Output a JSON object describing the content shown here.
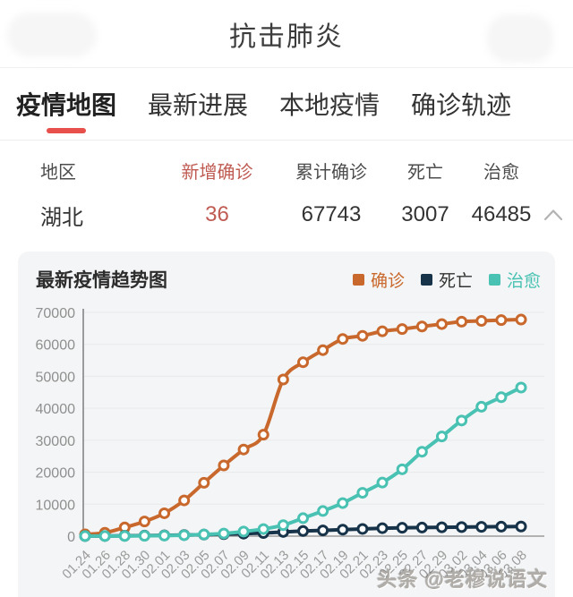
{
  "header": {
    "title": "抗击肺炎"
  },
  "tabs": [
    {
      "label": "疫情地图",
      "active": true
    },
    {
      "label": "最新进展",
      "active": false
    },
    {
      "label": "本地疫情",
      "active": false
    },
    {
      "label": "确诊轨迹",
      "active": false
    }
  ],
  "table": {
    "columns": [
      "地区",
      "新增确诊",
      "累计确诊",
      "死亡",
      "治愈"
    ],
    "rows": [
      {
        "region": "湖北",
        "new_confirmed": "36",
        "total_confirmed": "67743",
        "deaths": "3007",
        "cured": "46485"
      }
    ]
  },
  "icons": {
    "row_expander": "chevron-up-icon"
  },
  "chart": {
    "title": "最新疫情趋势图",
    "legend": [
      {
        "key": "confirmed",
        "name": "确诊",
        "swatch": "#c9682c",
        "text_color": "#c9682c"
      },
      {
        "key": "deaths",
        "name": "死亡",
        "swatch": "#16334a",
        "text_color": "#333333"
      },
      {
        "key": "cured",
        "name": "治愈",
        "swatch": "#49c2b3",
        "text_color": "#49c2b3"
      }
    ]
  },
  "chart_data": {
    "type": "line",
    "title": "最新疫情趋势图",
    "xlabel": "",
    "ylabel": "",
    "ylim": [
      0,
      70000
    ],
    "yticks": [
      0,
      10000,
      20000,
      30000,
      40000,
      50000,
      60000,
      70000
    ],
    "grid": true,
    "legend_position": "top-right",
    "x": [
      "01.24",
      "01.26",
      "01.28",
      "01.30",
      "02.01",
      "02.03",
      "02.05",
      "02.07",
      "02.09",
      "02.11",
      "02.13",
      "02.15",
      "02.17",
      "02.19",
      "02.21",
      "02.23",
      "02.25",
      "02.27",
      "02.29",
      "03.02",
      "03.04",
      "03.06",
      "03.08"
    ],
    "series": [
      {
        "key": "confirmed",
        "name": "确诊",
        "color": "#c9682c",
        "values": [
          549,
          1058,
          2714,
          4586,
          7153,
          11177,
          16678,
          22112,
          27100,
          31728,
          49000,
          54406,
          58182,
          61682,
          62662,
          64084,
          64786,
          65596,
          66337,
          67103,
          67332,
          67592,
          67743
        ]
      },
      {
        "key": "deaths",
        "name": "死亡",
        "color": "#16334a",
        "values": [
          24,
          52,
          100,
          162,
          249,
          350,
          479,
          618,
          780,
          974,
          1310,
          1596,
          1789,
          2029,
          2250,
          2495,
          2615,
          2682,
          2761,
          2835,
          2902,
          2959,
          3007
        ]
      },
      {
        "key": "cured",
        "name": "治愈",
        "color": "#49c2b3",
        "values": [
          32,
          42,
          52,
          90,
          166,
          295,
          520,
          817,
          1439,
          2222,
          3441,
          5623,
          7862,
          10337,
          13557,
          16748,
          20912,
          26403,
          31187,
          36167,
          40479,
          43468,
          46485
        ]
      }
    ]
  },
  "watermark": {
    "text": "头条 @老穆说语文"
  }
}
